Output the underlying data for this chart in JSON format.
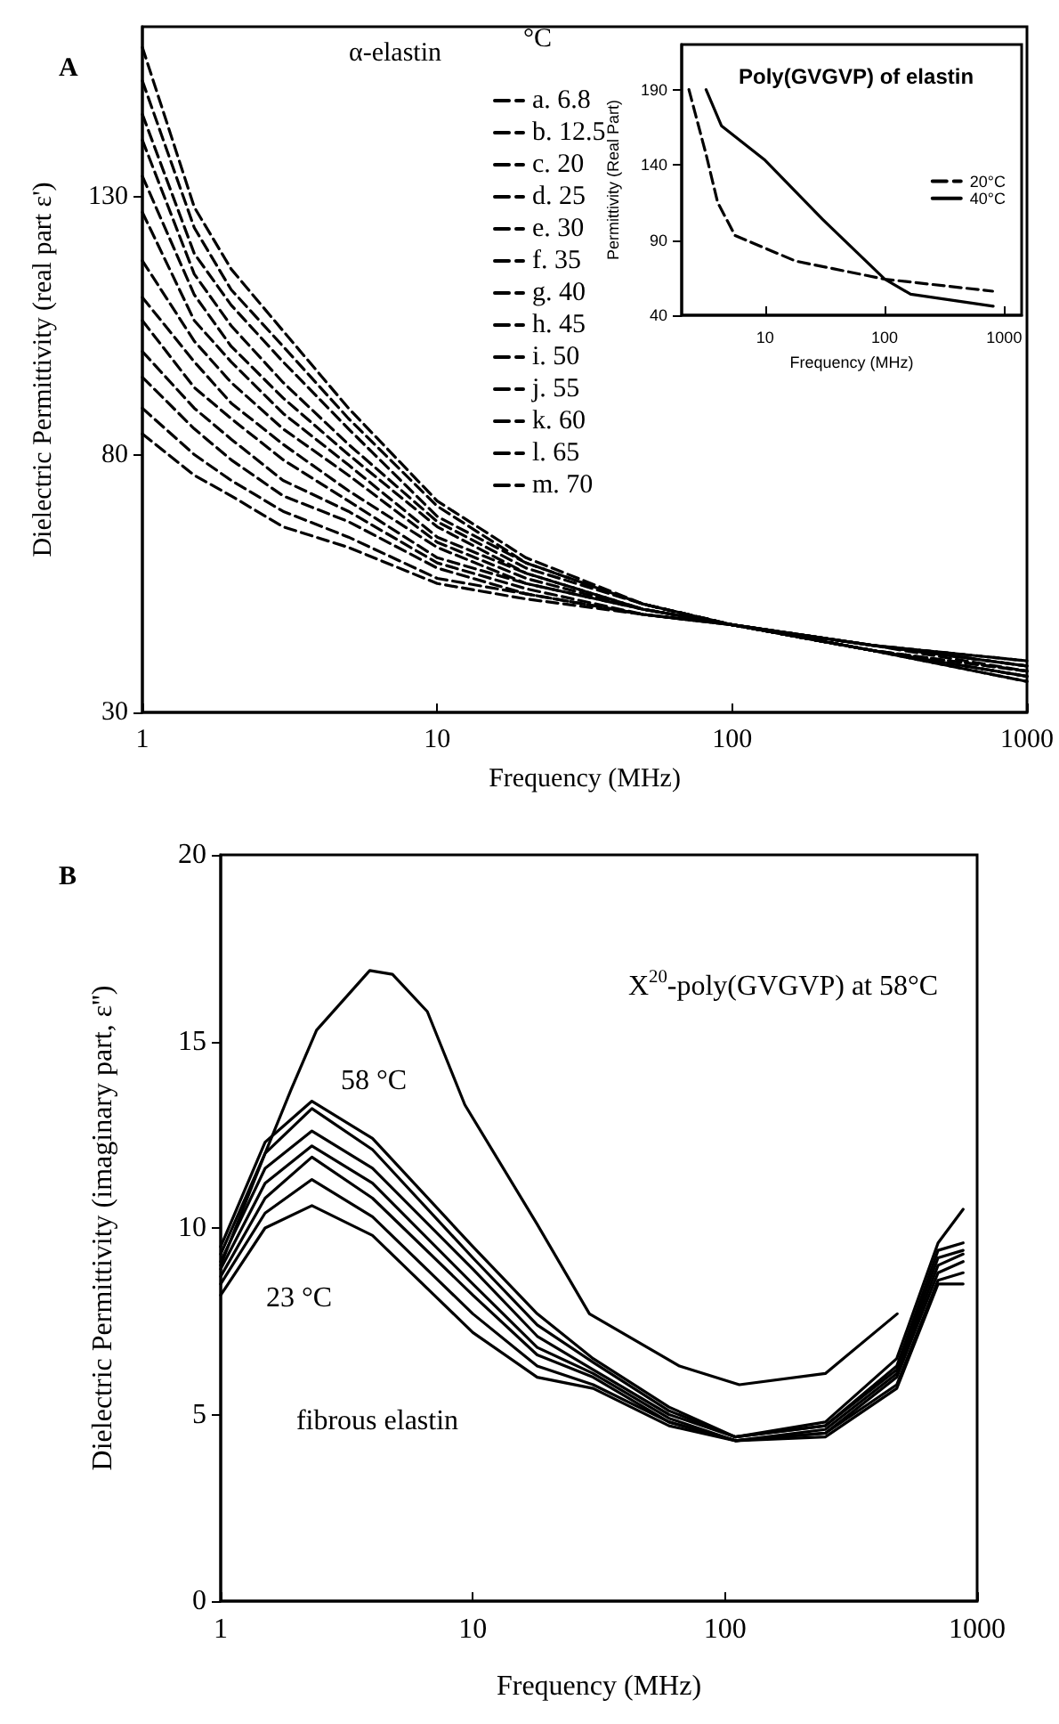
{
  "chart_data": [
    {
      "type": "line",
      "title": "A",
      "xlabel": "Frequency (MHz)",
      "ylabel": "Dielectric Permittivity (real part ε')",
      "legend_title": "°C",
      "annotations": [
        "α-elastin"
      ],
      "log": "x",
      "line_style": "dashed",
      "legend": "top",
      "xlim": [
        1,
        1000
      ],
      "xticks": [
        1,
        10,
        100,
        1000
      ],
      "ylim": [
        30,
        163
      ],
      "yticks": [
        30,
        80,
        130
      ],
      "x": [
        1,
        1.5,
        2,
        3,
        5,
        10,
        20,
        50,
        100,
        300,
        1000
      ],
      "series": [
        {
          "name": "a. 6.8",
          "color": "#000000",
          "values": [
            159,
            128,
            116,
            104,
            89,
            71,
            60,
            51,
            47,
            42,
            36
          ]
        },
        {
          "name": "b. 12.5",
          "color": "#000000",
          "values": [
            152.5,
            124,
            112,
            101,
            87,
            70,
            59,
            51,
            47,
            42,
            36
          ]
        },
        {
          "name": "c. 20",
          "color": "#000000",
          "values": [
            146,
            119,
            109,
            98,
            85,
            68,
            59,
            51,
            47,
            42,
            37
          ]
        },
        {
          "name": "d. 25",
          "color": "#000000",
          "values": [
            141,
            115,
            105,
            94,
            82,
            67,
            58,
            51,
            47,
            42,
            37
          ]
        },
        {
          "name": "e. 30",
          "color": "#000000",
          "values": [
            134,
            111,
            101,
            91,
            80,
            66,
            57,
            50,
            47,
            42,
            37
          ]
        },
        {
          "name": "f. 35",
          "color": "#000000",
          "values": [
            127,
            106,
            98,
            88,
            78,
            64,
            57,
            50,
            47,
            42,
            38
          ]
        },
        {
          "name": "g. 40",
          "color": "#000000",
          "values": [
            117.6,
            102,
            94,
            85,
            76,
            63,
            56,
            50,
            47,
            42,
            38
          ]
        },
        {
          "name": "h. 45",
          "color": "#000000",
          "values": [
            110.5,
            98,
            90,
            82,
            73,
            62,
            55,
            50,
            47,
            43,
            38
          ]
        },
        {
          "name": "i. 50",
          "color": "#000000",
          "values": [
            106,
            93,
            87,
            79,
            71,
            60,
            55,
            50,
            47,
            43,
            39
          ]
        },
        {
          "name": "j. 55",
          "color": "#000000",
          "values": [
            100,
            89,
            83,
            75,
            69,
            59,
            54,
            49,
            47,
            43,
            39
          ]
        },
        {
          "name": "k. 60",
          "color": "#000000",
          "values": [
            95,
            85,
            79,
            72,
            67,
            58,
            53,
            49,
            47,
            43,
            39
          ]
        },
        {
          "name": "l. 65",
          "color": "#000000",
          "values": [
            89,
            80,
            75,
            69,
            64,
            56,
            53,
            49,
            47,
            43,
            40
          ]
        },
        {
          "name": "m. 70",
          "color": "#000000",
          "values": [
            84,
            76,
            72,
            66,
            62,
            55,
            52,
            49,
            47,
            43,
            40
          ]
        }
      ]
    },
    {
      "type": "line",
      "title": "Poly(GVGVP) of elastin",
      "xlabel": "Frequency (MHz)",
      "ylabel": "Permittivity (Real Part)",
      "log": "x",
      "legend": "right",
      "xlim": [
        2,
        1400
      ],
      "xticks": [
        10,
        100,
        1000
      ],
      "ylim": [
        40,
        220
      ],
      "yticks": [
        40,
        90,
        140,
        190
      ],
      "series": [
        {
          "name": "20°C",
          "color": "#000000",
          "line_style": "dashed",
          "x": [
            2.3,
            3.2,
            4,
            5.6,
            18,
            100,
            800
          ],
          "values": [
            190,
            147,
            115,
            93,
            76,
            64,
            56
          ]
        },
        {
          "name": "40°C",
          "color": "#000000",
          "line_style": "solid",
          "x": [
            3.2,
            4.3,
            10,
            30,
            100,
            165,
            810
          ],
          "values": [
            190,
            166,
            143,
            104,
            64,
            54,
            46
          ]
        }
      ]
    },
    {
      "type": "line",
      "title": "B",
      "xlabel": "Frequency (MHz)",
      "ylabel": "Dielectric Permittivity (imaginary part, ε'')",
      "log": "x",
      "xlim": [
        1,
        1000
      ],
      "xticks": [
        1,
        10,
        100,
        1000
      ],
      "ylim": [
        0,
        20
      ],
      "yticks": [
        0,
        5,
        10,
        15,
        20
      ],
      "annotations": [
        "X$^{20}$-poly(GVGVP) at 58°C",
        "58 °C",
        "23 °C",
        "fibrous elastin"
      ],
      "x": [
        1,
        1.5,
        2.3,
        4,
        10,
        18,
        30,
        60,
        110,
        250,
        480,
        700,
        880
      ],
      "series": [
        {
          "color": "#000000",
          "x": [
            1,
            1.5,
            1.9,
            2.4,
            3.9,
            4.8,
            6.6,
            9.3,
            18,
            29,
            66,
            114,
            250,
            482
          ],
          "values": [
            9.0,
            12.0,
            13.7,
            15.3,
            16.9,
            16.8,
            15.8,
            13.3,
            10.1,
            7.7,
            6.3,
            5.8,
            6.1,
            7.7
          ]
        },
        {
          "color": "#000000",
          "values": [
            9.5,
            12.3,
            13.4,
            12.4,
            9.5,
            7.7,
            6.5,
            5.2,
            4.4,
            4.8,
            6.5,
            9.6,
            10.5
          ]
        },
        {
          "color": "#000000",
          "values": [
            9.3,
            12.0,
            13.2,
            12.1,
            9.2,
            7.4,
            6.4,
            5.1,
            4.4,
            4.7,
            6.3,
            9.4,
            9.6
          ]
        },
        {
          "color": "#000000",
          "values": [
            9.1,
            11.6,
            12.6,
            11.6,
            8.9,
            7.1,
            6.2,
            5.0,
            4.4,
            4.7,
            6.2,
            9.2,
            9.4
          ]
        },
        {
          "color": "#000000",
          "values": [
            8.9,
            11.2,
            12.2,
            11.2,
            8.5,
            6.8,
            6.1,
            4.9,
            4.3,
            4.6,
            6.1,
            9.0,
            9.3
          ]
        },
        {
          "color": "#000000",
          "values": [
            8.7,
            10.8,
            11.9,
            10.8,
            8.2,
            6.6,
            6.0,
            4.8,
            4.3,
            4.5,
            6.0,
            8.8,
            9.1
          ]
        },
        {
          "color": "#000000",
          "values": [
            8.5,
            10.4,
            11.3,
            10.3,
            7.7,
            6.3,
            5.8,
            4.8,
            4.3,
            4.5,
            5.8,
            8.6,
            8.8
          ]
        },
        {
          "color": "#000000",
          "values": [
            8.2,
            10.0,
            10.6,
            9.8,
            7.2,
            6.0,
            5.7,
            4.7,
            4.3,
            4.4,
            5.7,
            8.5,
            8.5
          ]
        }
      ]
    }
  ]
}
